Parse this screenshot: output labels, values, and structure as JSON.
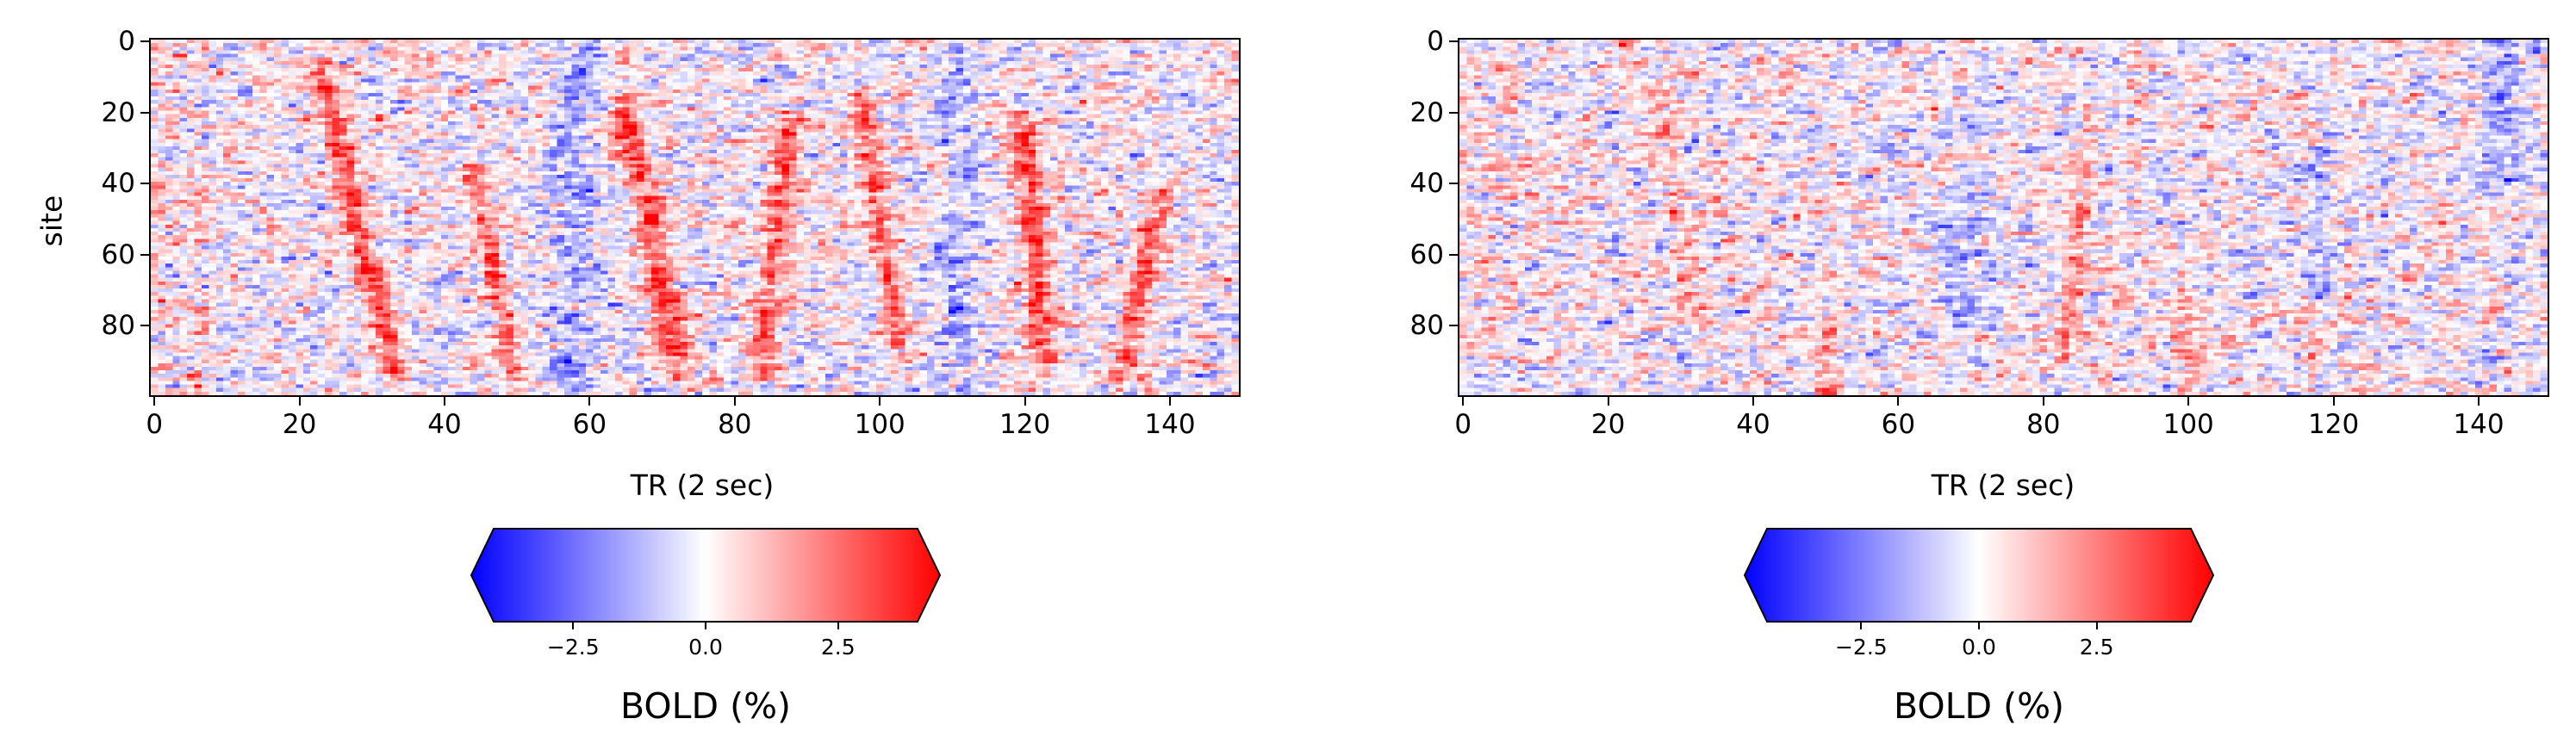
{
  "chart_data": [
    {
      "type": "heatmap",
      "title": "",
      "xlabel": "TR (2 sec)",
      "ylabel": "site",
      "x_range": [
        0,
        150
      ],
      "y_range": [
        0,
        100
      ],
      "x_ticks": [
        "0",
        "20",
        "40",
        "60",
        "80",
        "100",
        "120",
        "140"
      ],
      "x_tick_values": [
        0,
        20,
        40,
        60,
        80,
        100,
        120,
        140
      ],
      "y_ticks": [
        "0",
        "20",
        "40",
        "60",
        "80"
      ],
      "y_tick_values": [
        0,
        20,
        40,
        60,
        80
      ],
      "y_inverted": true,
      "colormap": "bwr",
      "colors": {
        "low": "#0000ff",
        "mid": "#ffffff",
        "high": "#ff0000"
      },
      "colorbar": {
        "title": "BOLD (%)",
        "ticks": [
          "−2.5",
          "0.0",
          "2.5"
        ],
        "tick_values": [
          -2.5,
          0.0,
          2.5
        ],
        "range": [
          -4,
          4
        ],
        "extend": "both"
      },
      "description_of_values": "Noisy BOLD signal per site and time; diagonal red streaks (propagating waves) near TR 25-35, 45, 65-70, 85, 100, 120, 135"
    },
    {
      "type": "heatmap",
      "title": "",
      "xlabel": "TR (2 sec)",
      "ylabel": "",
      "x_range": [
        0,
        150
      ],
      "y_range": [
        0,
        100
      ],
      "x_ticks": [
        "0",
        "20",
        "40",
        "60",
        "80",
        "100",
        "120",
        "140"
      ],
      "x_tick_values": [
        0,
        20,
        40,
        60,
        80,
        100,
        120,
        140
      ],
      "y_ticks": [
        "0",
        "20",
        "40",
        "60",
        "80"
      ],
      "y_tick_values": [
        0,
        20,
        40,
        60,
        80
      ],
      "y_inverted": true,
      "colormap": "bwr",
      "colors": {
        "low": "#0000ff",
        "mid": "#ffffff",
        "high": "#ff0000"
      },
      "colorbar": {
        "title": "BOLD (%)",
        "ticks": [
          "−2.5",
          "0.0",
          "2.5"
        ],
        "tick_values": [
          -2.5,
          0.0,
          2.5
        ],
        "range": [
          -4.5,
          4.5
        ],
        "extend": "both"
      },
      "description_of_values": "Noisy BOLD signal per site and time with weaker, less structured streaks"
    }
  ]
}
